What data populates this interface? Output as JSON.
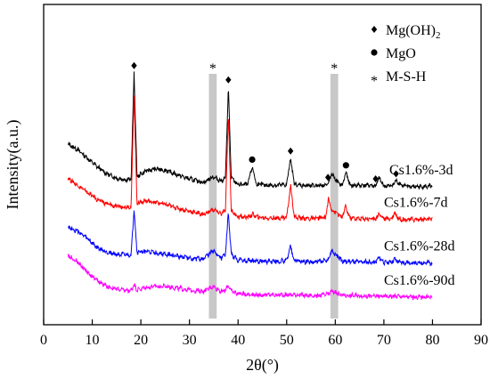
{
  "chart_data": {
    "type": "line",
    "xlabel": "2θ(°)",
    "ylabel": "Intensity(a.u.)",
    "xlim": [
      0,
      90
    ],
    "x_ticks": [
      "0",
      "10",
      "20",
      "30",
      "40",
      "50",
      "60",
      "70",
      "80",
      "90"
    ],
    "y_ticks_shown": false,
    "grid": false,
    "highlight_bands_2theta": [
      [
        34,
        35.6
      ],
      [
        59,
        60.6
      ]
    ],
    "legend": {
      "placement": "top-right",
      "entries": [
        {
          "marker": "diamond",
          "label": "Mg(OH)",
          "sub": "2"
        },
        {
          "marker": "circle",
          "label": "MgO",
          "sub": ""
        },
        {
          "marker": "asterisk",
          "label": "M-S-H",
          "sub": ""
        }
      ]
    },
    "series": [
      {
        "name": "Cs1.6%-3d",
        "color": "#000000",
        "x": [
          5,
          7,
          9,
          11,
          13,
          15,
          17,
          18,
          18.6,
          19.2,
          21,
          23,
          25,
          27,
          29,
          31,
          33,
          34.8,
          36.5,
          37.4,
          38,
          38.6,
          40,
          42,
          42.9,
          43.8,
          46,
          48,
          50,
          50.8,
          51.6,
          53,
          55,
          57,
          58.5,
          59.3,
          60.5,
          61.4,
          62.2,
          63,
          65,
          67,
          68.3,
          69,
          70,
          71.6,
          72.5,
          74,
          76,
          78,
          80
        ],
        "y": [
          12.0,
          11.2,
          10.0,
          8.8,
          7.8,
          7.2,
          7.0,
          7.0,
          22.0,
          7.4,
          8.2,
          8.5,
          8.3,
          7.8,
          7.3,
          6.9,
          6.6,
          7.4,
          6.8,
          7.2,
          20.0,
          7.2,
          6.3,
          6.3,
          8.8,
          6.3,
          6.2,
          6.2,
          6.3,
          10.0,
          6.3,
          6.2,
          6.1,
          6.2,
          6.3,
          7.8,
          6.6,
          6.1,
          8.0,
          6.2,
          6.2,
          6.2,
          6.1,
          7.2,
          6.1,
          6.1,
          6.8,
          6.1,
          6.0,
          6.0,
          6.0
        ]
      },
      {
        "name": "Cs1.6%-7d",
        "color": "#ff0000",
        "x": [
          5,
          7,
          9,
          11,
          13,
          15,
          17,
          18,
          18.6,
          19.2,
          21,
          23,
          25,
          27,
          29,
          31,
          33,
          34.8,
          36.5,
          37.4,
          38,
          38.6,
          40,
          42,
          43,
          44,
          46,
          48,
          50,
          50.8,
          51.6,
          53,
          55,
          57,
          58,
          58.6,
          59.3,
          60.5,
          61.4,
          62.1,
          63,
          65,
          67,
          68.3,
          69,
          70,
          71.6,
          72.2,
          73,
          74,
          76,
          78,
          80
        ],
        "y": [
          12.0,
          11.0,
          10.0,
          9.0,
          8.4,
          8.0,
          8.0,
          8.0,
          24.0,
          8.5,
          8.8,
          8.6,
          8.3,
          7.9,
          7.5,
          7.2,
          6.9,
          7.6,
          7.0,
          7.4,
          21.0,
          7.4,
          6.6,
          6.5,
          6.9,
          6.5,
          6.4,
          6.4,
          6.5,
          11.0,
          6.5,
          6.4,
          6.3,
          6.4,
          6.5,
          9.0,
          7.5,
          7.0,
          6.4,
          8.0,
          6.4,
          6.3,
          6.3,
          6.3,
          7.0,
          6.3,
          6.3,
          7.2,
          6.3,
          6.2,
          6.2,
          6.2,
          6.2
        ]
      },
      {
        "name": "Cs1.6%-28d",
        "color": "#0000ff",
        "x": [
          5,
          7,
          9,
          11,
          13,
          15,
          17,
          18,
          18.6,
          19.2,
          21,
          23,
          25,
          27,
          29,
          31,
          33,
          34.8,
          36.5,
          37.4,
          38,
          38.6,
          40,
          42,
          44,
          46,
          48,
          50,
          50.8,
          51.6,
          53,
          55,
          57,
          58.5,
          59.2,
          60.5,
          61.5,
          63,
          65,
          67,
          68.3,
          69,
          70,
          71.6,
          72.2,
          73,
          74,
          76,
          78,
          80
        ],
        "y": [
          10.0,
          9.3,
          8.3,
          7.0,
          6.4,
          6.1,
          6.0,
          6.0,
          12.5,
          6.4,
          6.5,
          6.3,
          6.1,
          5.9,
          5.7,
          5.5,
          5.5,
          6.6,
          5.6,
          6.0,
          12.0,
          6.0,
          5.3,
          5.2,
          5.1,
          5.1,
          5.1,
          5.2,
          7.2,
          5.2,
          5.1,
          5.0,
          5.1,
          5.2,
          6.6,
          5.8,
          5.1,
          5.1,
          5.0,
          5.0,
          5.0,
          5.6,
          5.0,
          5.0,
          5.4,
          5.0,
          4.9,
          4.9,
          4.9,
          4.9
        ]
      },
      {
        "name": "Cs1.6%-90d",
        "color": "#ff00ff",
        "x": [
          5,
          7,
          9,
          11,
          13,
          15,
          17,
          18,
          18.6,
          19.2,
          21,
          23,
          25,
          27,
          29,
          31,
          33,
          34.8,
          36.5,
          37.4,
          38,
          38.6,
          40,
          42,
          44,
          46,
          48,
          50,
          52,
          54,
          56,
          58,
          59.5,
          61,
          63,
          65,
          67,
          69,
          71,
          73,
          75,
          77,
          80
        ],
        "y": [
          10.0,
          9.0,
          7.6,
          6.4,
          5.6,
          5.2,
          5.0,
          5.0,
          5.9,
          5.1,
          5.4,
          5.6,
          5.6,
          5.4,
          5.2,
          5.0,
          4.9,
          5.6,
          4.9,
          5.0,
          5.8,
          4.9,
          4.6,
          4.5,
          4.4,
          4.4,
          4.4,
          4.4,
          4.4,
          4.3,
          4.3,
          4.4,
          4.9,
          4.4,
          4.3,
          4.3,
          4.2,
          4.2,
          4.2,
          4.2,
          4.1,
          4.1,
          4.1
        ]
      }
    ],
    "offsets": [
      11.5,
      8.5,
      5.5,
      3.0
    ],
    "annotations": [
      {
        "marker": "diamond",
        "x": 18.6,
        "series": 0
      },
      {
        "marker": "diamond",
        "x": 38,
        "series": 0
      },
      {
        "marker": "circle",
        "x": 42.9,
        "series": 0
      },
      {
        "marker": "diamond",
        "x": 50.8,
        "series": 0
      },
      {
        "marker": "diamond",
        "x": 58.5,
        "series": 0
      },
      {
        "marker": "circle",
        "x": 62.2,
        "series": 0
      },
      {
        "marker": "diamond",
        "x": 68.3,
        "series": 0
      },
      {
        "marker": "diamond",
        "x": 72.5,
        "series": 0
      },
      {
        "marker": "asterisk",
        "x": 34.8,
        "series": 0
      },
      {
        "marker": "asterisk",
        "x": 59.8,
        "series": 0
      }
    ]
  }
}
